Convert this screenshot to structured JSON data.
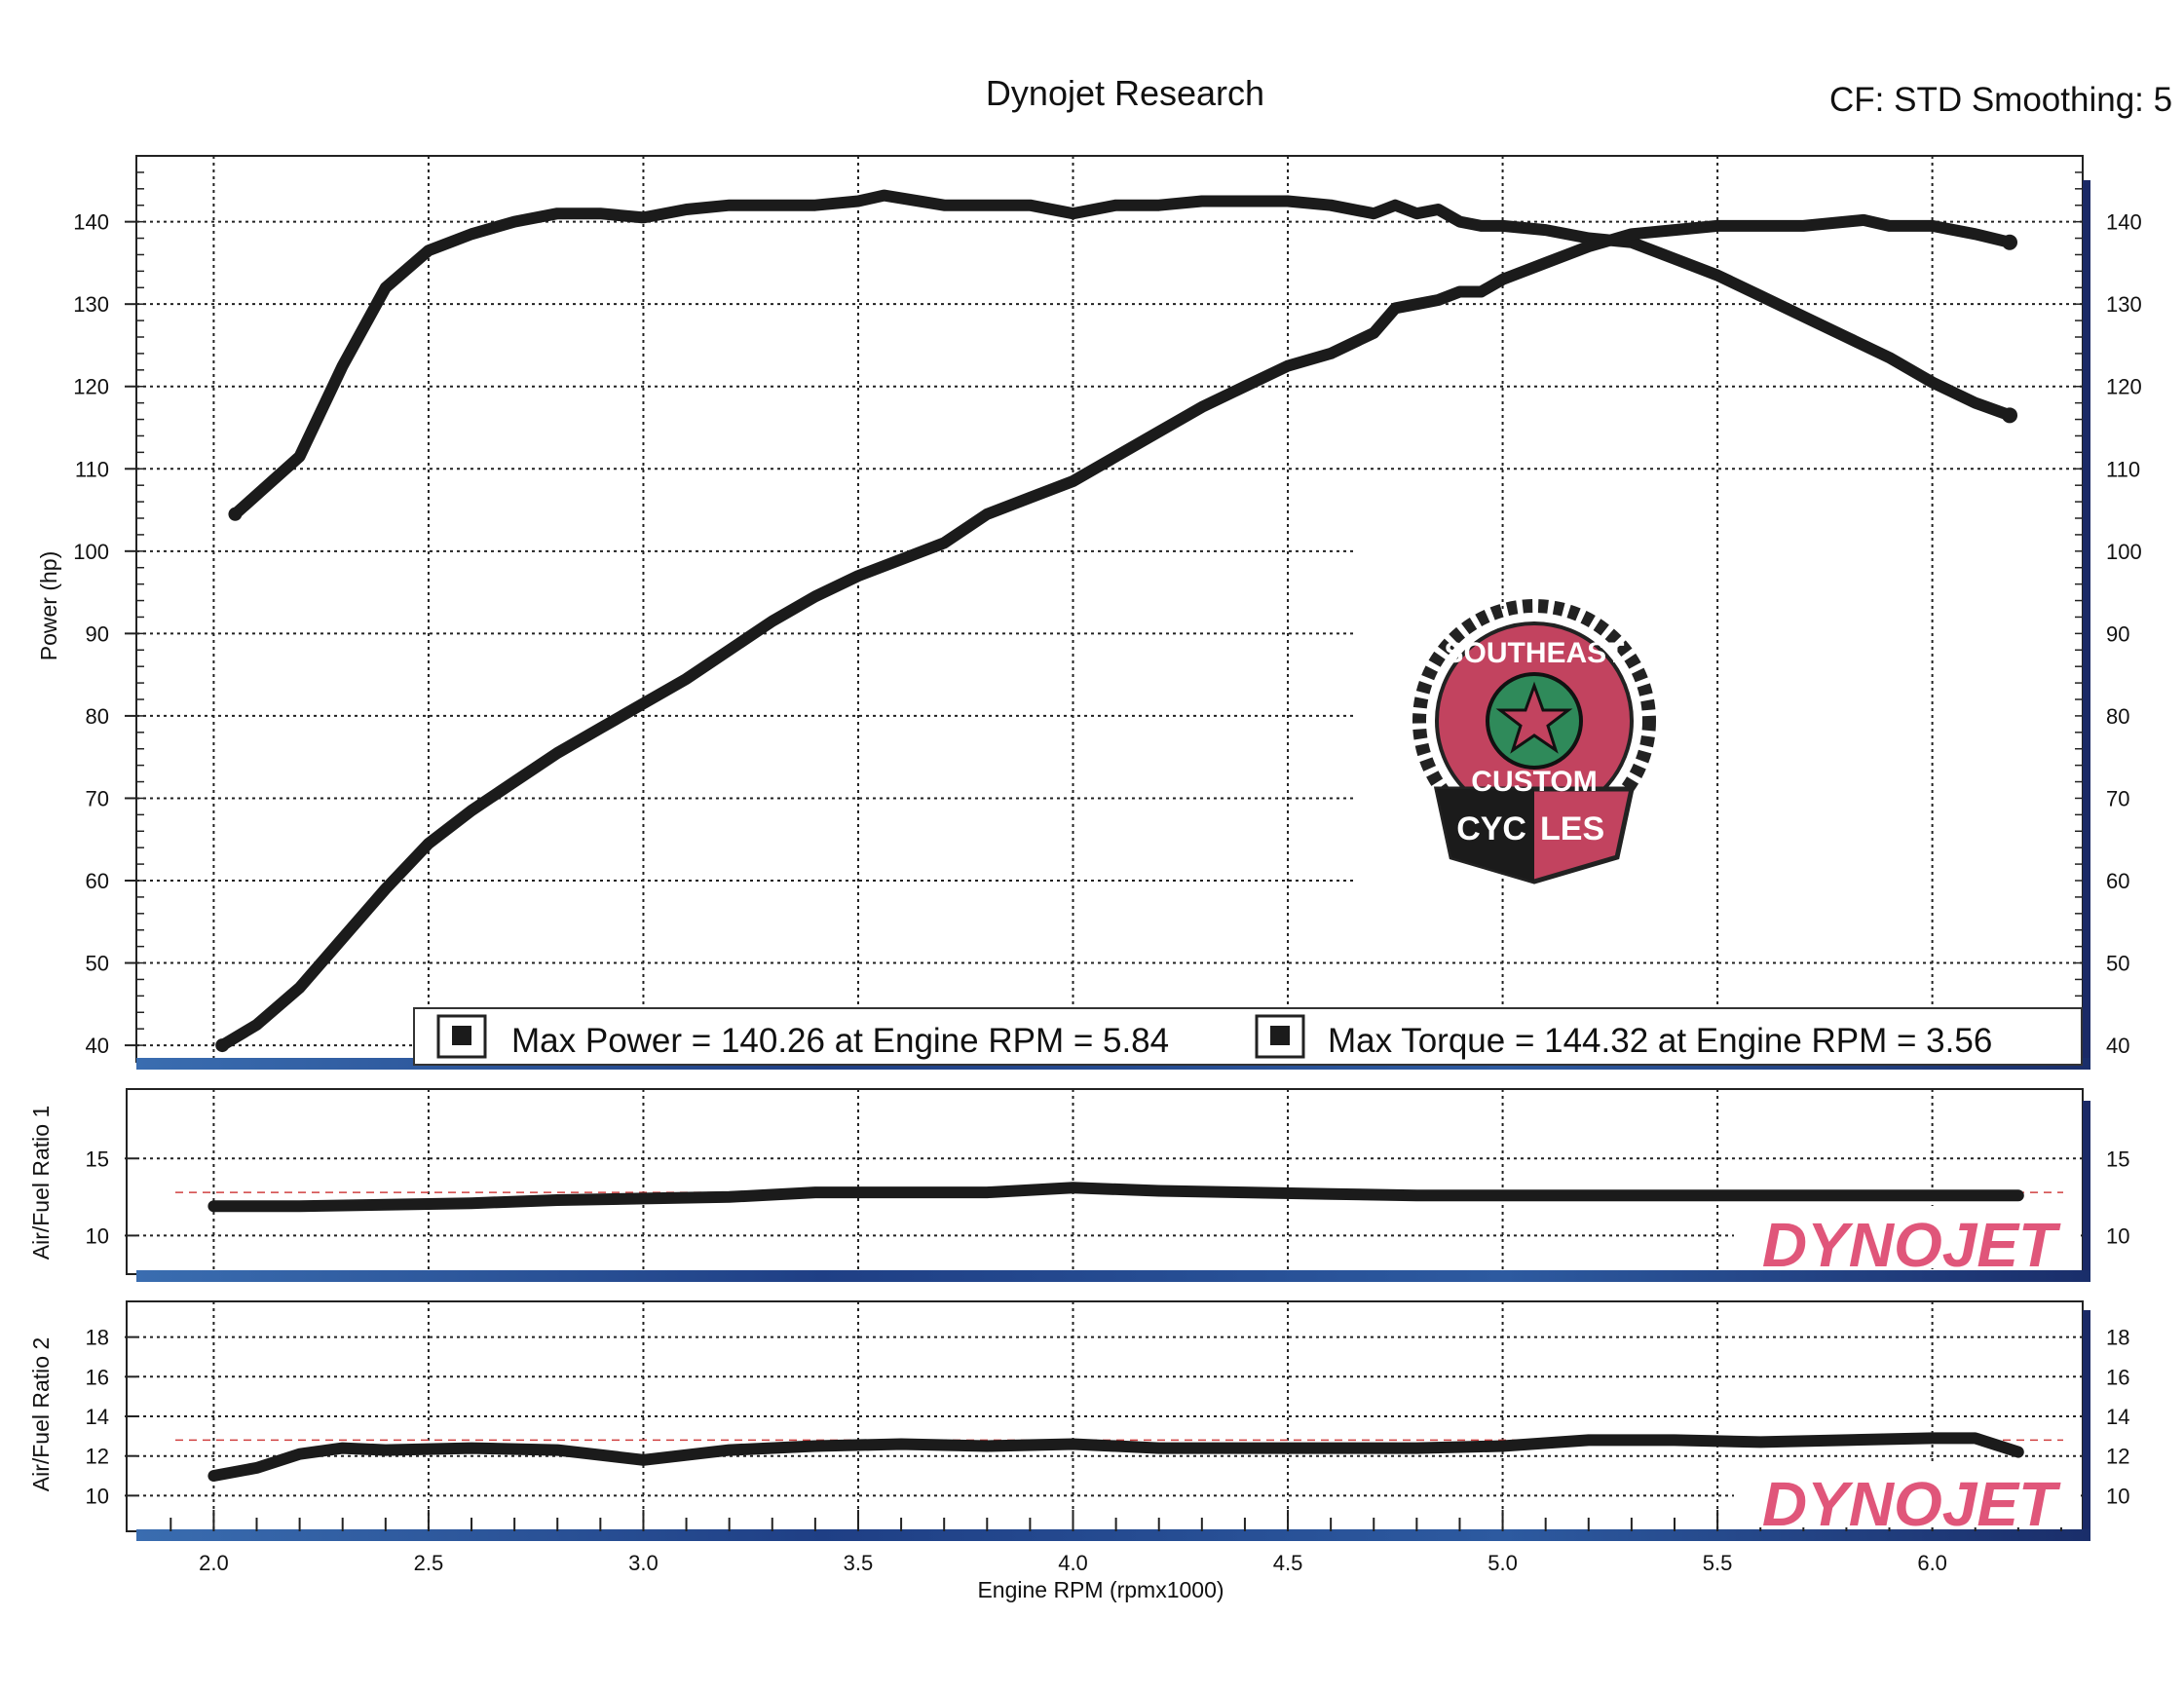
{
  "header": {
    "title": "Dynojet Research",
    "settings": "CF: STD Smoothing: 5"
  },
  "legend": {
    "power_text": "Max Power = 140.26 at Engine RPM = 5.84",
    "torque_text": "Max Torque = 144.32 at Engine RPM = 3.56"
  },
  "watermark": "DYNOJET",
  "logo": {
    "top": "SOUTHEAST",
    "middle": "CUSTOM",
    "bottom_left": "CYC",
    "bottom_right": "LES"
  },
  "colors": {
    "curve": "#1b1b1b",
    "watermark_pink": "#e0567a",
    "watermark_dark": "#2a2a2a",
    "logo_red": "#c2435f",
    "logo_green": "#2f8a5a",
    "strip_blue": "#28448a"
  },
  "chart_data": [
    {
      "type": "line",
      "xlabel": "Engine RPM (rpmx1000)",
      "ylabel": "Power (hp)",
      "xlim": [
        1.82,
        6.35
      ],
      "ylim": [
        38,
        148
      ],
      "x_ticks": [
        "2.0",
        "2.5",
        "3.0",
        "3.5",
        "4.0",
        "4.5",
        "5.0",
        "5.5",
        "6.0"
      ],
      "y_ticks": [
        "40",
        "50",
        "60",
        "70",
        "80",
        "90",
        "100",
        "110",
        "120",
        "130",
        "140"
      ],
      "grid": true,
      "legend_position": "bottom",
      "series": [
        {
          "x": [
            2.05,
            2.2,
            2.3,
            2.4,
            2.5,
            2.6,
            2.7,
            2.8,
            2.9,
            3.0,
            3.1,
            3.2,
            3.3,
            3.4,
            3.5,
            3.56,
            3.7,
            3.8,
            3.9,
            4.0,
            4.1,
            4.2,
            4.3,
            4.4,
            4.5,
            4.6,
            4.7,
            4.75,
            4.8,
            4.85,
            4.9,
            4.95,
            5.0,
            5.1,
            5.2,
            5.3,
            5.4,
            5.5,
            5.6,
            5.7,
            5.8,
            5.9,
            6.0,
            6.1,
            6.18
          ],
          "y": [
            104.5,
            111.5,
            122.5,
            132,
            136.5,
            138.5,
            140,
            141,
            141,
            140.5,
            141.5,
            142,
            142,
            142,
            142.5,
            143.2,
            142,
            142,
            142,
            141,
            142,
            142,
            142.5,
            142.5,
            142.5,
            142,
            141,
            142,
            141,
            141.5,
            140,
            139.5,
            139.5,
            139,
            138,
            137.5,
            135.5,
            133.5,
            131,
            128.5,
            126,
            123.5,
            120.5,
            118,
            116.5
          ]
        },
        {
          "x": [
            2.02,
            2.1,
            2.2,
            2.3,
            2.4,
            2.5,
            2.6,
            2.7,
            2.8,
            2.9,
            3.0,
            3.1,
            3.2,
            3.3,
            3.4,
            3.5,
            3.6,
            3.7,
            3.8,
            3.9,
            4.0,
            4.1,
            4.2,
            4.3,
            4.4,
            4.5,
            4.6,
            4.7,
            4.75,
            4.8,
            4.85,
            4.9,
            4.95,
            5.0,
            5.1,
            5.2,
            5.3,
            5.4,
            5.5,
            5.6,
            5.7,
            5.84,
            5.9,
            6.0,
            6.1,
            6.18
          ],
          "y": [
            40,
            42.5,
            47,
            53,
            59,
            64.5,
            68.5,
            72,
            75.5,
            78.5,
            81.5,
            84.5,
            88,
            91.5,
            94.5,
            97,
            99,
            101,
            104.5,
            106.5,
            108.5,
            111.5,
            114.5,
            117.5,
            120,
            122.5,
            124,
            126.5,
            129.5,
            130,
            130.5,
            131.5,
            131.5,
            133,
            135,
            137,
            138.5,
            139,
            139.5,
            139.5,
            139.5,
            140.2,
            139.5,
            139.5,
            138.5,
            137.5
          ]
        }
      ]
    },
    {
      "type": "line",
      "ylabel": "Air/Fuel Ratio 1",
      "xlim": [
        1.82,
        6.35
      ],
      "ylim": [
        7.5,
        19.5
      ],
      "y_ticks": [
        "10",
        "15"
      ],
      "grid": true,
      "reference_line": 12.8,
      "series": [
        {
          "x": [
            2.0,
            2.2,
            2.4,
            2.6,
            2.8,
            3.0,
            3.2,
            3.4,
            3.6,
            3.8,
            4.0,
            4.2,
            4.4,
            4.6,
            4.8,
            5.0,
            5.2,
            5.4,
            5.6,
            5.8,
            6.0,
            6.2
          ],
          "y": [
            11.9,
            11.9,
            12.0,
            12.1,
            12.3,
            12.4,
            12.5,
            12.8,
            12.8,
            12.8,
            13.1,
            12.9,
            12.8,
            12.7,
            12.6,
            12.6,
            12.6,
            12.6,
            12.6,
            12.6,
            12.6,
            12.6
          ]
        }
      ]
    },
    {
      "type": "line",
      "ylabel": "Air/Fuel Ratio 2",
      "xlim": [
        1.82,
        6.35
      ],
      "ylim": [
        8.2,
        19.8
      ],
      "y_ticks": [
        "10",
        "12",
        "14",
        "16",
        "18"
      ],
      "grid": true,
      "reference_line": 12.8,
      "series": [
        {
          "x": [
            2.0,
            2.1,
            2.2,
            2.3,
            2.4,
            2.6,
            2.8,
            3.0,
            3.2,
            3.4,
            3.6,
            3.8,
            4.0,
            4.2,
            4.4,
            4.6,
            4.8,
            5.0,
            5.2,
            5.4,
            5.6,
            5.8,
            6.0,
            6.1,
            6.2
          ],
          "y": [
            11.0,
            11.4,
            12.1,
            12.4,
            12.3,
            12.4,
            12.3,
            11.8,
            12.3,
            12.5,
            12.6,
            12.5,
            12.6,
            12.4,
            12.4,
            12.4,
            12.4,
            12.5,
            12.8,
            12.8,
            12.7,
            12.8,
            12.9,
            12.9,
            12.2
          ]
        }
      ]
    }
  ]
}
